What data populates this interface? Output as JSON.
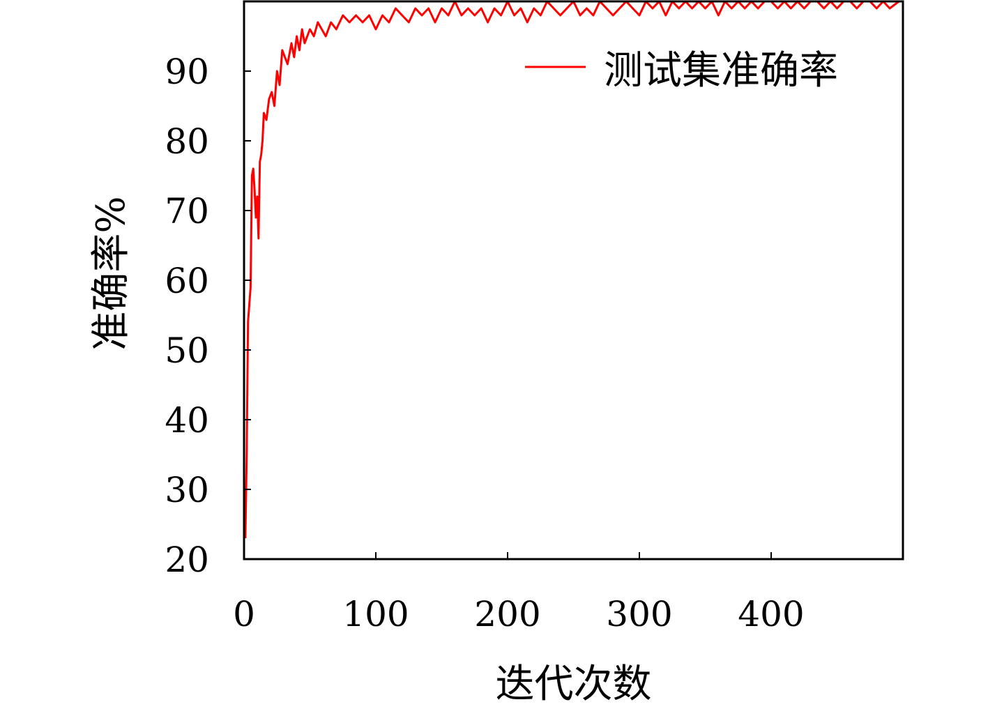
{
  "chart_data": {
    "type": "line",
    "title": "",
    "xlabel": "迭代次数",
    "ylabel": "准确率%",
    "xlim": [
      0,
      500
    ],
    "ylim": [
      20,
      100
    ],
    "xticks": [
      0,
      100,
      200,
      300,
      400
    ],
    "yticks": [
      20,
      30,
      40,
      50,
      60,
      70,
      80,
      90
    ],
    "grid": false,
    "legend_position": "top-right",
    "series": [
      {
        "name": "测试集准确率",
        "color": "#ff0000",
        "x": [
          1,
          2,
          3,
          5,
          6,
          7,
          8,
          9,
          10,
          11,
          12,
          13,
          14,
          15,
          17,
          19,
          21,
          23,
          25,
          27,
          29,
          31,
          33,
          36,
          38,
          40,
          42,
          44,
          46,
          48,
          50,
          53,
          56,
          59,
          62,
          66,
          70,
          75,
          80,
          85,
          90,
          95,
          100,
          105,
          110,
          115,
          120,
          125,
          130,
          135,
          140,
          145,
          150,
          155,
          160,
          165,
          170,
          175,
          180,
          185,
          190,
          195,
          200,
          205,
          210,
          215,
          220,
          225,
          230,
          235,
          240,
          245,
          250,
          255,
          260,
          265,
          270,
          275,
          280,
          285,
          290,
          295,
          300,
          305,
          310,
          315,
          320,
          325,
          330,
          335,
          340,
          345,
          350,
          355,
          360,
          365,
          370,
          375,
          380,
          385,
          390,
          395,
          400,
          405,
          410,
          415,
          420,
          425,
          430,
          435,
          440,
          445,
          450,
          455,
          460,
          465,
          470,
          475,
          480,
          485,
          490,
          497
        ],
        "y": [
          23,
          35,
          54,
          59,
          75,
          76,
          73,
          69,
          72,
          66,
          77,
          78,
          80,
          84,
          83,
          86,
          87,
          85,
          90,
          88,
          93,
          92,
          91,
          94,
          92,
          95,
          93,
          96,
          94,
          95,
          96,
          95,
          97,
          96,
          95,
          97,
          96,
          98,
          97,
          98,
          97,
          98,
          96,
          98,
          97,
          99,
          98,
          97,
          99,
          98,
          99,
          97,
          99,
          98,
          100,
          98,
          99,
          98,
          99,
          97,
          99,
          98,
          100,
          98,
          99,
          97,
          99,
          98,
          100,
          99,
          98,
          99,
          100,
          98,
          99,
          98,
          100,
          99,
          98,
          99,
          100,
          99,
          98,
          100,
          99,
          100,
          98,
          100,
          99,
          100,
          99,
          100,
          99,
          100,
          98,
          100,
          99,
          100,
          99,
          100,
          99,
          100,
          100,
          99,
          100,
          99,
          100,
          99,
          100,
          100,
          99,
          100,
          99,
          100,
          100,
          99,
          100,
          100,
          99,
          100,
          99,
          100
        ]
      }
    ]
  }
}
